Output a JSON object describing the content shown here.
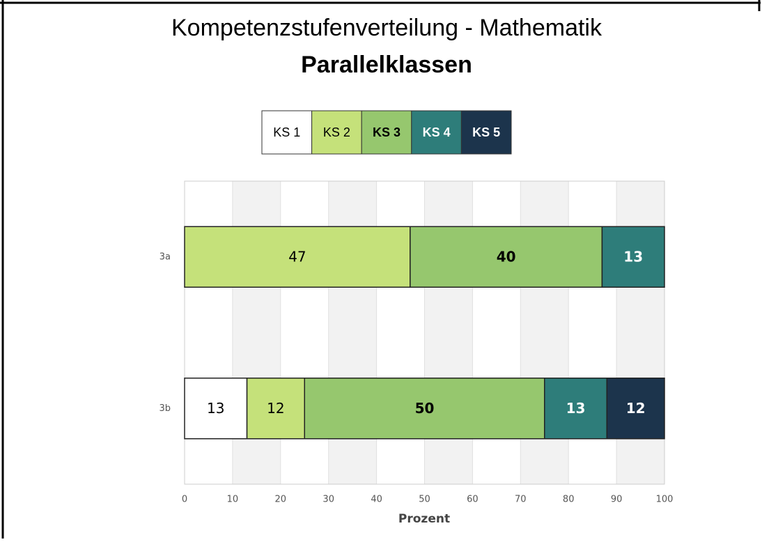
{
  "chart_data": {
    "type": "stacked_barh",
    "title": "Kompetenzstufenverteilung - Mathematik",
    "subtitle": "Parallelklassen",
    "categories": [
      "3a",
      "3b"
    ],
    "series": [
      {
        "name": "KS 1",
        "color": "#ffffff",
        "values": [
          null,
          13
        ]
      },
      {
        "name": "KS 2",
        "color": "#c5e17a",
        "values": [
          47,
          12
        ]
      },
      {
        "name": "KS 3",
        "color": "#96c76e",
        "values": [
          40,
          50
        ]
      },
      {
        "name": "KS 4",
        "color": "#2e7d7a",
        "values": [
          13,
          13
        ]
      },
      {
        "name": "KS 5",
        "color": "#1c344c",
        "values": [
          null,
          12
        ]
      }
    ],
    "xlabel": "Prozent",
    "xlim": [
      0,
      100
    ],
    "xticks": [
      0,
      10,
      20,
      30,
      40,
      50,
      60,
      70,
      80,
      90,
      100
    ],
    "grid": true,
    "legend": "top"
  }
}
